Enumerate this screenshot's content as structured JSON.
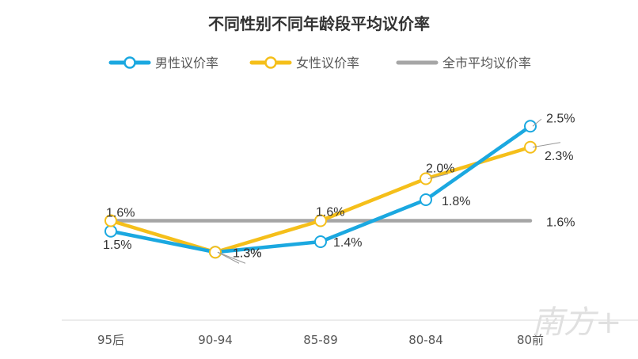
{
  "chart_data": {
    "type": "line",
    "title": "不同性别不同年龄段平均议价率",
    "categories": [
      "95后",
      "90-94",
      "85-89",
      "80-84",
      "80前"
    ],
    "series": [
      {
        "name": "男性议价率",
        "values": [
          1.5,
          1.3,
          1.4,
          1.8,
          2.5
        ],
        "labels": [
          "1.5%",
          "1.3%",
          "1.4%",
          "1.8%",
          "2.5%"
        ],
        "color": "#1ba8e0"
      },
      {
        "name": "女性议价率",
        "values": [
          1.6,
          1.3,
          1.6,
          2.0,
          2.3
        ],
        "labels": [
          "1.6%",
          "1.3%",
          "1.6%",
          "2.0%",
          "2.3%"
        ],
        "color": "#f5bf1a"
      },
      {
        "name": "全市平均议价率",
        "values": [
          1.6,
          1.6,
          1.6,
          1.6,
          1.6
        ],
        "labels": [
          "",
          "",
          "",
          "",
          "1.6%"
        ],
        "color": "#a6a6a6"
      }
    ],
    "ylim": [
      0.0,
      2.8
    ],
    "grid": false,
    "legend_position": "top"
  },
  "watermark": "南方+"
}
